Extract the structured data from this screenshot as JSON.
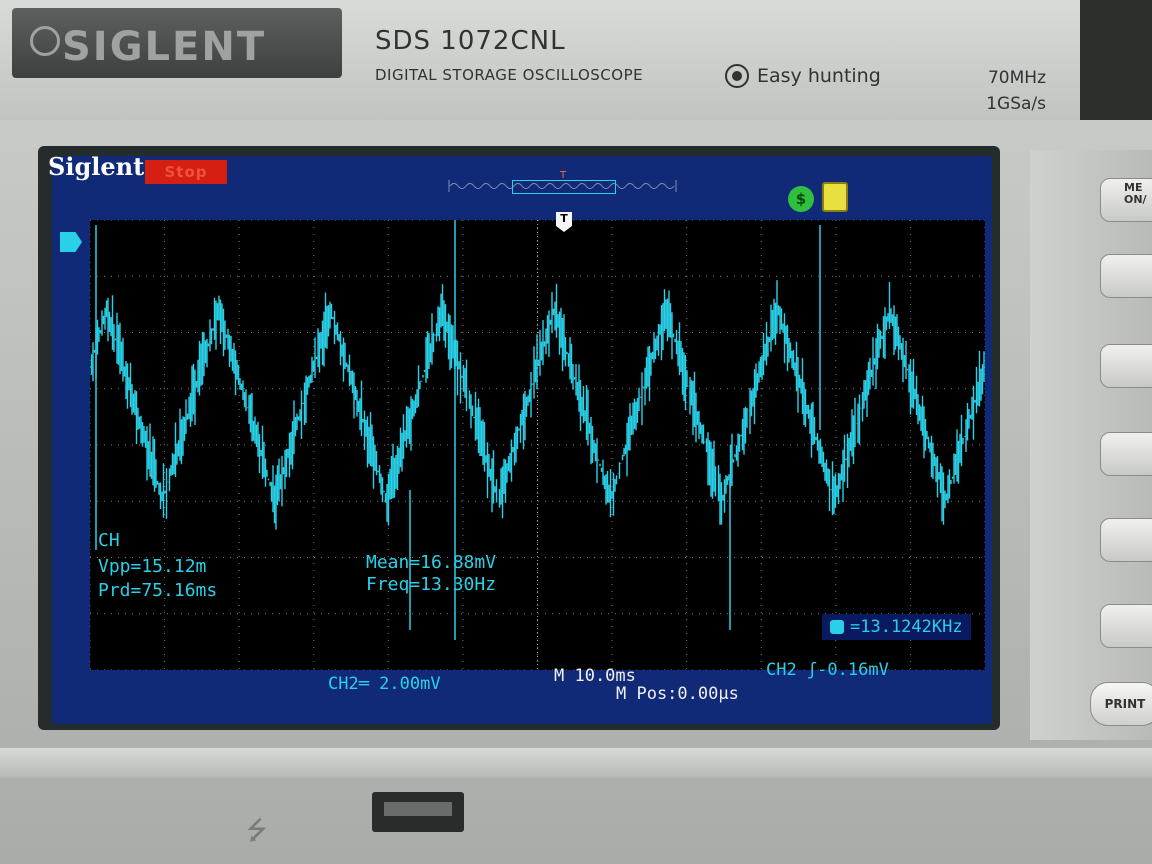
{
  "instrument": {
    "brand_logo": "SIGLENT",
    "model": "SDS 1072CNL",
    "model_subtitle": "DIGITAL STORAGE OSCILLOSCOPE",
    "easy_hunting_label": "Easy hunting",
    "bandwidth": "70MHz",
    "sample_rate": "1GSa/s"
  },
  "screen": {
    "brand": "Siglent",
    "run_status": "Stop",
    "trigger_marker": "T",
    "memory_position_marker": "T"
  },
  "measurements": {
    "channel_label": "CH",
    "vpp": "Vpp=15.12m",
    "prd": "Prd=75.16ms",
    "mean": "Mean=16.88mV",
    "freq": "Freq=13.30Hz"
  },
  "trigger_frequency": "=13.1242KHz",
  "bottom_bar": {
    "ch2_scale": "CH2═ 2.00mV",
    "timebase": "M 10.0ms",
    "trigger_level": "CH2 ʃ-0.16mV",
    "m_pos": "M Pos:0.00μs"
  },
  "side_buttons": {
    "menu_on": "ME ON/",
    "print": "PRINT"
  },
  "icons": {
    "status_icon": "dollar-icon",
    "device_icon": "usb-device-icon",
    "usb_port_symbol": "usb-icon"
  },
  "colors": {
    "trace": "#28d0e8",
    "screen_border": "#102a78",
    "stop_badge": "#d41f12"
  },
  "waveform": {
    "description_type": "noisy periodic triangle-like signal",
    "cycles_visible": 8
  }
}
